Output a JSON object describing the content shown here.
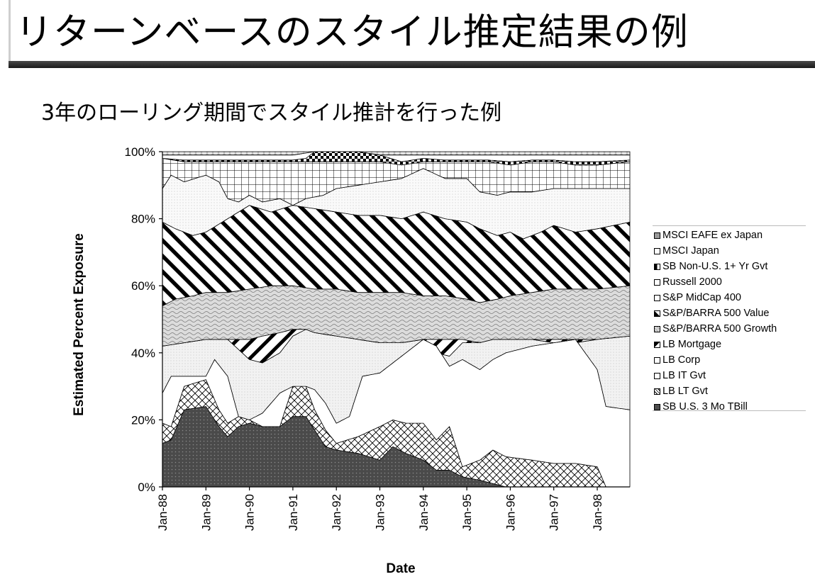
{
  "slide": {
    "title": "リターンベースのスタイル推定結果の例",
    "subtitle": "3年のローリング期間でスタイル推計を行った例"
  },
  "chart_data": {
    "type": "area",
    "stacked": true,
    "title": "",
    "xlabel": "Date",
    "ylabel": "Estimated Percent Exposure",
    "ylim": [
      0,
      100
    ],
    "yticks": [
      "0%",
      "20%",
      "40%",
      "60%",
      "80%",
      "100%"
    ],
    "x_tick_labels": [
      "Jan-88",
      "Jan-89",
      "Jan-90",
      "Jan-91",
      "Jan-92",
      "Jan-93",
      "Jan-94",
      "Jan-95",
      "Jan-96",
      "Jan-97",
      "Jan-98"
    ],
    "x_range_years": [
      1988.0,
      1998.75
    ],
    "series_order_note": "cumulative upper boundary (%) of each stacked band, listed bottom to top",
    "series": [
      {
        "name": "SB U.S. 3 Mo TBill",
        "color": "#4d4d4d",
        "points": [
          [
            1988.0,
            13
          ],
          [
            1988.2,
            14
          ],
          [
            1988.5,
            23
          ],
          [
            1989.0,
            24
          ],
          [
            1989.3,
            18
          ],
          [
            1989.5,
            15
          ],
          [
            1989.75,
            18
          ],
          [
            1990.0,
            19
          ],
          [
            1990.3,
            18
          ],
          [
            1990.7,
            18
          ],
          [
            1991.0,
            21
          ],
          [
            1991.3,
            21
          ],
          [
            1991.5,
            17
          ],
          [
            1991.75,
            12
          ],
          [
            1992.0,
            11
          ],
          [
            1992.5,
            10
          ],
          [
            1993.0,
            8
          ],
          [
            1993.3,
            12
          ],
          [
            1993.6,
            10
          ],
          [
            1994.0,
            8
          ],
          [
            1994.3,
            5
          ],
          [
            1994.6,
            5
          ],
          [
            1994.9,
            3
          ],
          [
            1995.3,
            2
          ],
          [
            1995.6,
            1
          ],
          [
            1995.9,
            0
          ],
          [
            1998.75,
            0
          ]
        ]
      },
      {
        "name": "LB LT Gvt",
        "color": "#ffffff",
        "points": [
          [
            1988.0,
            19
          ],
          [
            1988.2,
            18
          ],
          [
            1988.5,
            30
          ],
          [
            1989.0,
            32
          ],
          [
            1989.3,
            23
          ],
          [
            1989.5,
            19
          ],
          [
            1989.75,
            21
          ],
          [
            1990.0,
            20
          ],
          [
            1990.3,
            18
          ],
          [
            1990.7,
            18
          ],
          [
            1991.0,
            30
          ],
          [
            1991.3,
            30
          ],
          [
            1991.5,
            23
          ],
          [
            1991.75,
            17
          ],
          [
            1992.0,
            13
          ],
          [
            1992.5,
            15
          ],
          [
            1993.0,
            18
          ],
          [
            1993.3,
            20
          ],
          [
            1993.6,
            19
          ],
          [
            1994.0,
            19
          ],
          [
            1994.3,
            14
          ],
          [
            1994.6,
            18
          ],
          [
            1994.9,
            6
          ],
          [
            1995.3,
            8
          ],
          [
            1995.6,
            11
          ],
          [
            1995.9,
            9
          ],
          [
            1996.5,
            8
          ],
          [
            1997.0,
            7
          ],
          [
            1997.5,
            7
          ],
          [
            1998.0,
            6
          ],
          [
            1998.2,
            0
          ],
          [
            1998.75,
            0
          ]
        ]
      },
      {
        "name": "LB IT Gvt",
        "color": "#ffffff",
        "points": [
          [
            1988.0,
            28
          ],
          [
            1988.2,
            33
          ],
          [
            1988.5,
            33
          ],
          [
            1989.0,
            33
          ],
          [
            1989.2,
            38
          ],
          [
            1989.5,
            33
          ],
          [
            1989.75,
            21
          ],
          [
            1990.0,
            20
          ],
          [
            1990.3,
            22
          ],
          [
            1990.7,
            28
          ],
          [
            1991.0,
            30
          ],
          [
            1991.3,
            30
          ],
          [
            1991.5,
            29
          ],
          [
            1991.75,
            25
          ],
          [
            1992.0,
            19
          ],
          [
            1992.3,
            21
          ],
          [
            1992.6,
            33
          ],
          [
            1993.0,
            34
          ],
          [
            1993.3,
            37
          ],
          [
            1993.6,
            40
          ],
          [
            1994.0,
            44
          ],
          [
            1994.3,
            42
          ],
          [
            1994.6,
            36
          ],
          [
            1994.9,
            38
          ],
          [
            1995.3,
            35
          ],
          [
            1995.6,
            38
          ],
          [
            1995.9,
            40
          ],
          [
            1996.5,
            42
          ],
          [
            1997.0,
            43
          ],
          [
            1997.5,
            44
          ],
          [
            1998.0,
            35
          ],
          [
            1998.2,
            24
          ],
          [
            1998.75,
            23
          ]
        ]
      },
      {
        "name": "LB Corp",
        "color": "#ffffff",
        "points": [
          [
            1988.0,
            42
          ],
          [
            1988.5,
            43
          ],
          [
            1989.0,
            44
          ],
          [
            1989.5,
            44
          ],
          [
            1990.0,
            38
          ],
          [
            1990.3,
            37
          ],
          [
            1990.7,
            40
          ],
          [
            1991.0,
            45
          ],
          [
            1991.3,
            47
          ],
          [
            1991.5,
            46
          ],
          [
            1992.0,
            45
          ],
          [
            1992.5,
            44
          ],
          [
            1993.0,
            43
          ],
          [
            1993.5,
            43
          ],
          [
            1994.0,
            44
          ],
          [
            1994.3,
            40
          ],
          [
            1994.6,
            39
          ],
          [
            1994.9,
            43
          ],
          [
            1995.3,
            43
          ],
          [
            1995.6,
            44
          ],
          [
            1996.0,
            44
          ],
          [
            1996.5,
            44
          ],
          [
            1997.0,
            43
          ],
          [
            1997.5,
            43
          ],
          [
            1998.0,
            44
          ],
          [
            1998.75,
            45
          ]
        ]
      },
      {
        "name": "LB Mortgage",
        "color": "#ffffff",
        "points": [
          [
            1988.0,
            42
          ],
          [
            1988.5,
            43
          ],
          [
            1989.0,
            44
          ],
          [
            1989.5,
            44
          ],
          [
            1990.0,
            44
          ],
          [
            1990.3,
            45
          ],
          [
            1990.7,
            46
          ],
          [
            1991.0,
            47
          ],
          [
            1991.3,
            47
          ],
          [
            1991.5,
            46
          ],
          [
            1992.0,
            45
          ],
          [
            1992.5,
            44
          ],
          [
            1993.0,
            43
          ],
          [
            1993.5,
            43
          ],
          [
            1994.0,
            44
          ],
          [
            1994.3,
            44
          ],
          [
            1994.6,
            44
          ],
          [
            1994.9,
            44
          ],
          [
            1995.3,
            43
          ],
          [
            1995.6,
            44
          ],
          [
            1996.0,
            44
          ],
          [
            1996.5,
            44
          ],
          [
            1997.0,
            44
          ],
          [
            1997.5,
            44
          ],
          [
            1998.0,
            44
          ],
          [
            1998.75,
            45
          ]
        ]
      },
      {
        "name": "S&P/BARRA 500 Growth",
        "color": "#d9d9d9",
        "points": [
          [
            1988.0,
            54
          ],
          [
            1988.3,
            56
          ],
          [
            1988.7,
            57
          ],
          [
            1989.0,
            58
          ],
          [
            1989.5,
            58
          ],
          [
            1990.0,
            59
          ],
          [
            1990.5,
            60
          ],
          [
            1991.0,
            60
          ],
          [
            1991.5,
            59
          ],
          [
            1992.0,
            59
          ],
          [
            1992.5,
            58
          ],
          [
            1993.0,
            58
          ],
          [
            1993.5,
            58
          ],
          [
            1994.0,
            57
          ],
          [
            1994.5,
            57
          ],
          [
            1995.0,
            56
          ],
          [
            1995.3,
            55
          ],
          [
            1995.7,
            56
          ],
          [
            1996.0,
            57
          ],
          [
            1996.5,
            58
          ],
          [
            1997.0,
            59
          ],
          [
            1997.5,
            59
          ],
          [
            1998.0,
            59
          ],
          [
            1998.75,
            60
          ]
        ]
      },
      {
        "name": "S&P/BARRA 500 Value",
        "color": "#ffffff",
        "points": [
          [
            1988.0,
            79
          ],
          [
            1988.3,
            77
          ],
          [
            1988.7,
            75
          ],
          [
            1989.0,
            76
          ],
          [
            1989.5,
            80
          ],
          [
            1990.0,
            84
          ],
          [
            1990.5,
            82
          ],
          [
            1991.0,
            84
          ],
          [
            1991.5,
            83
          ],
          [
            1992.0,
            82
          ],
          [
            1992.5,
            81
          ],
          [
            1993.0,
            81
          ],
          [
            1993.5,
            80
          ],
          [
            1994.0,
            82
          ],
          [
            1994.5,
            80
          ],
          [
            1995.0,
            79
          ],
          [
            1995.3,
            77
          ],
          [
            1995.7,
            75
          ],
          [
            1996.0,
            76
          ],
          [
            1996.3,
            74
          ],
          [
            1996.7,
            76
          ],
          [
            1997.0,
            78
          ],
          [
            1997.5,
            76
          ],
          [
            1998.0,
            77
          ],
          [
            1998.75,
            79
          ]
        ]
      },
      {
        "name": "S&P MidCap 400",
        "color": "#ffffff",
        "points": [
          [
            1988.0,
            89
          ],
          [
            1988.2,
            93
          ],
          [
            1988.5,
            91
          ],
          [
            1989.0,
            93
          ],
          [
            1989.3,
            91
          ],
          [
            1989.5,
            86
          ],
          [
            1989.75,
            85
          ],
          [
            1990.0,
            87
          ],
          [
            1990.3,
            85
          ],
          [
            1990.7,
            86
          ],
          [
            1991.0,
            84
          ],
          [
            1991.3,
            86
          ],
          [
            1991.7,
            87
          ],
          [
            1992.0,
            89
          ],
          [
            1992.5,
            90
          ],
          [
            1993.0,
            91
          ],
          [
            1993.5,
            92
          ],
          [
            1994.0,
            95
          ],
          [
            1994.5,
            92
          ],
          [
            1995.0,
            92
          ],
          [
            1995.3,
            88
          ],
          [
            1995.7,
            87
          ],
          [
            1996.0,
            88
          ],
          [
            1996.5,
            88
          ],
          [
            1997.0,
            89
          ],
          [
            1997.5,
            89
          ],
          [
            1998.0,
            89
          ],
          [
            1998.75,
            89
          ]
        ]
      },
      {
        "name": "Russell 2000",
        "color": "#ffffff",
        "points": [
          [
            1988.0,
            98
          ],
          [
            1988.5,
            97
          ],
          [
            1989.0,
            97
          ],
          [
            1989.5,
            97
          ],
          [
            1990.0,
            97
          ],
          [
            1990.5,
            97
          ],
          [
            1991.0,
            97
          ],
          [
            1991.5,
            97
          ],
          [
            1992.0,
            97
          ],
          [
            1992.5,
            97
          ],
          [
            1993.0,
            97
          ],
          [
            1993.5,
            96
          ],
          [
            1994.0,
            97
          ],
          [
            1994.5,
            97
          ],
          [
            1995.0,
            97
          ],
          [
            1995.5,
            97
          ],
          [
            1996.0,
            96
          ],
          [
            1996.5,
            97
          ],
          [
            1997.0,
            97
          ],
          [
            1997.5,
            96
          ],
          [
            1998.0,
            96
          ],
          [
            1998.75,
            97
          ]
        ]
      },
      {
        "name": "SB Non-U.S. 1+ Yr Gvt",
        "color": "#ffffff",
        "points": [
          [
            1988.0,
            98
          ],
          [
            1988.5,
            97.5
          ],
          [
            1989.0,
            97.5
          ],
          [
            1989.5,
            97.5
          ],
          [
            1990.0,
            97.5
          ],
          [
            1990.5,
            97.5
          ],
          [
            1991.0,
            97.5
          ],
          [
            1991.3,
            98
          ],
          [
            1991.5,
            100
          ],
          [
            1992.0,
            100
          ],
          [
            1992.5,
            100
          ],
          [
            1993.0,
            99
          ],
          [
            1993.5,
            97
          ],
          [
            1994.0,
            98
          ],
          [
            1994.5,
            97.5
          ],
          [
            1995.0,
            97.5
          ],
          [
            1995.5,
            97.5
          ],
          [
            1996.0,
            97
          ],
          [
            1996.5,
            97.5
          ],
          [
            1997.0,
            97.5
          ],
          [
            1997.5,
            97
          ],
          [
            1998.0,
            97
          ],
          [
            1998.75,
            97.5
          ]
        ]
      },
      {
        "name": "MSCI Japan",
        "color": "#ffffff",
        "points": [
          [
            1988.0,
            99
          ],
          [
            1988.5,
            99
          ],
          [
            1989.0,
            99
          ],
          [
            1990.0,
            99
          ],
          [
            1991.0,
            99
          ],
          [
            1991.5,
            100
          ],
          [
            1992.5,
            100
          ],
          [
            1993.0,
            99
          ],
          [
            1994.0,
            99
          ],
          [
            1995.0,
            99
          ],
          [
            1996.0,
            99
          ],
          [
            1997.0,
            99
          ],
          [
            1998.0,
            99
          ],
          [
            1998.75,
            99
          ]
        ]
      },
      {
        "name": "MSCI EAFE ex Japan",
        "color": "#bfbfbf",
        "points": [
          [
            1988.0,
            100
          ],
          [
            1998.75,
            100
          ]
        ]
      }
    ]
  }
}
